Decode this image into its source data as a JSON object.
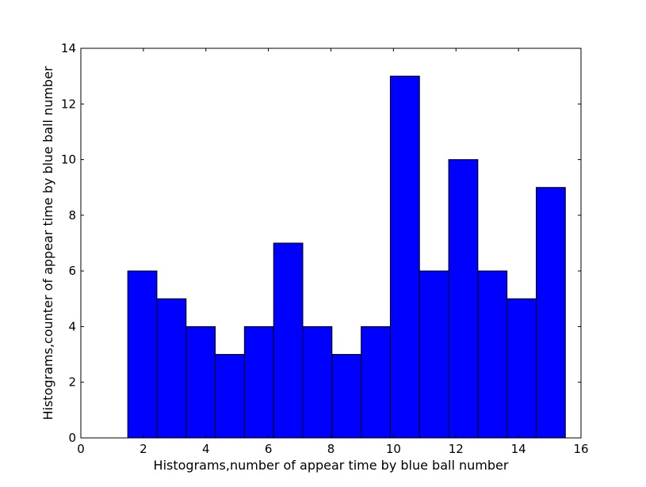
{
  "chart_data": {
    "type": "bar",
    "title": "",
    "xlabel": "Histograms,number of appear time by blue ball number",
    "ylabel": "Histograms,counter of appear time by blue ball number",
    "xlim": [
      0,
      16
    ],
    "ylim": [
      0,
      14
    ],
    "xticks": [
      "0",
      "2",
      "4",
      "6",
      "8",
      "10",
      "12",
      "14",
      "16"
    ],
    "yticks": [
      "0",
      "2",
      "4",
      "6",
      "8",
      "10",
      "12",
      "14"
    ],
    "bin_range": [
      1.5,
      15.5
    ],
    "bins": [
      {
        "left": 1.5,
        "right": 2.433,
        "value": 6
      },
      {
        "left": 2.433,
        "right": 3.367,
        "value": 5
      },
      {
        "left": 3.367,
        "right": 4.3,
        "value": 4
      },
      {
        "left": 4.3,
        "right": 5.233,
        "value": 3
      },
      {
        "left": 5.233,
        "right": 6.167,
        "value": 4
      },
      {
        "left": 6.167,
        "right": 7.1,
        "value": 7
      },
      {
        "left": 7.1,
        "right": 8.033,
        "value": 4
      },
      {
        "left": 8.033,
        "right": 8.967,
        "value": 3
      },
      {
        "left": 8.967,
        "right": 9.9,
        "value": 4
      },
      {
        "left": 9.9,
        "right": 10.833,
        "value": 13
      },
      {
        "left": 10.833,
        "right": 11.767,
        "value": 6
      },
      {
        "left": 11.767,
        "right": 12.7,
        "value": 10
      },
      {
        "left": 12.7,
        "right": 13.633,
        "value": 6
      },
      {
        "left": 13.633,
        "right": 14.567,
        "value": 5
      },
      {
        "left": 14.567,
        "right": 15.5,
        "value": 9
      }
    ],
    "grid": false,
    "legend": "none",
    "bar_color": "#0000ff",
    "edge_color": "#000000"
  }
}
